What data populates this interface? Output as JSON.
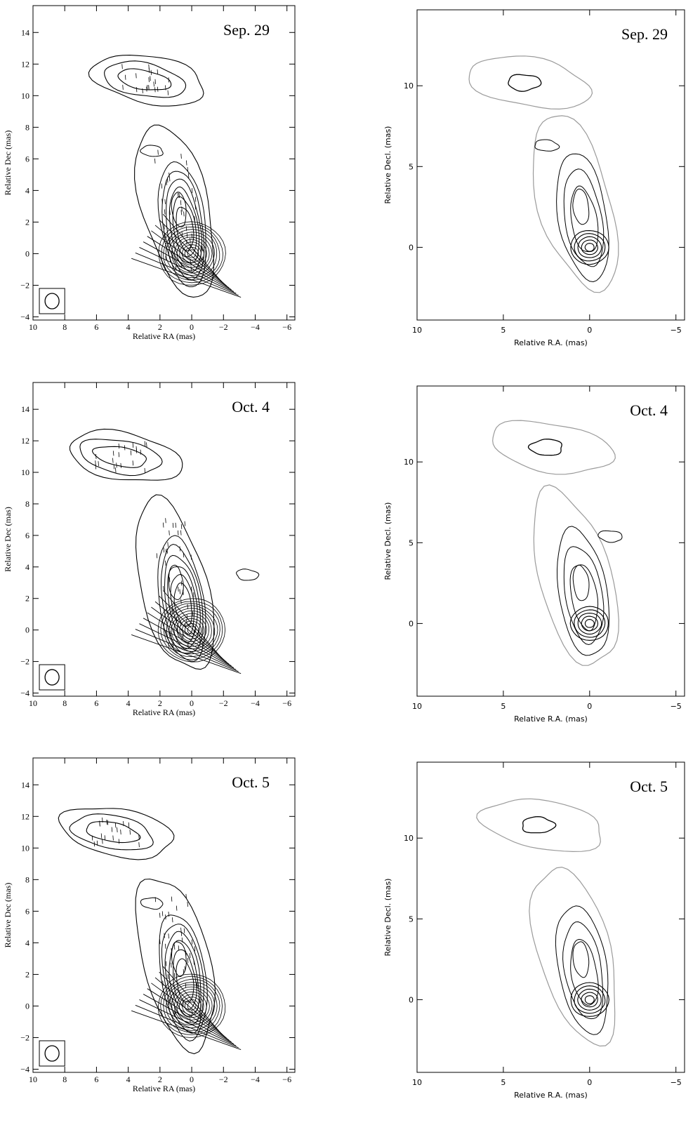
{
  "chart_data": [
    {
      "type": "contour",
      "title": "Sep. 29",
      "xlabel": "Relative RA (mas)",
      "ylabel": "Relative Dec (mas)",
      "xlim": [
        10,
        -6.5
      ],
      "ylim": [
        -4.2,
        15.7
      ],
      "xticks": [
        10,
        8,
        6,
        4,
        2,
        0,
        -2,
        -4,
        -6
      ],
      "yticks": [
        -4,
        -2,
        0,
        2,
        4,
        6,
        8,
        10,
        12,
        14
      ],
      "polarization_vectors": true,
      "beam_box": true,
      "components": [
        {
          "x": 0,
          "y": 0,
          "peak": true
        },
        {
          "x": 0.8,
          "y": 2.8
        },
        {
          "x": 3,
          "y": 11
        },
        {
          "x": 2.5,
          "y": 6.5
        }
      ]
    },
    {
      "type": "contour",
      "title": "Sep. 29",
      "xlabel": "Relative R.A. (mas)",
      "ylabel": "Relative Decl. (mas)",
      "xlim": [
        10,
        -5.5
      ],
      "ylim": [
        -4.5,
        14.7
      ],
      "xticks": [
        10,
        5,
        0,
        -5
      ],
      "yticks": [
        0,
        5,
        10
      ],
      "components": [
        {
          "x": 0,
          "y": 0,
          "peak": true
        },
        {
          "x": 0.5,
          "y": 2.5
        },
        {
          "x": 3.8,
          "y": 10.2
        },
        {
          "x": 2.5,
          "y": 6.3
        }
      ]
    },
    {
      "type": "contour",
      "title": "Oct. 4",
      "xlabel": "Relative RA (mas)",
      "ylabel": "Relative Dec (mas)",
      "xlim": [
        10,
        -6.5
      ],
      "ylim": [
        -4.2,
        15.7
      ],
      "xticks": [
        10,
        8,
        6,
        4,
        2,
        0,
        -2,
        -4,
        -6
      ],
      "yticks": [
        -4,
        -2,
        0,
        2,
        4,
        6,
        8,
        10,
        12,
        14
      ],
      "polarization_vectors": true,
      "beam_box": true,
      "components": [
        {
          "x": 0,
          "y": 0,
          "peak": true
        },
        {
          "x": 1,
          "y": 3
        },
        {
          "x": 4.5,
          "y": 11
        },
        {
          "x": -3.5,
          "y": 3.5
        }
      ]
    },
    {
      "type": "contour",
      "title": "Oct. 4",
      "xlabel": "Relative R.A. (mas)",
      "ylabel": "Relative Decl. (mas)",
      "xlim": [
        10,
        -5.5
      ],
      "ylim": [
        -4.5,
        14.7
      ],
      "xticks": [
        10,
        5,
        0,
        -5
      ],
      "yticks": [
        0,
        5,
        10
      ],
      "components": [
        {
          "x": 0,
          "y": 0,
          "peak": true
        },
        {
          "x": 0.5,
          "y": 2.5
        },
        {
          "x": 2.5,
          "y": 10.9
        },
        {
          "x": -1.2,
          "y": 5.4
        }
      ]
    },
    {
      "type": "contour",
      "title": "Oct. 5",
      "xlabel": "Relative RA (mas)",
      "ylabel": "Relative Dec (mas)",
      "xlim": [
        10,
        -6.5
      ],
      "ylim": [
        -4.2,
        15.7
      ],
      "xticks": [
        10,
        8,
        6,
        4,
        2,
        0,
        -2,
        -4,
        -6
      ],
      "yticks": [
        -4,
        -2,
        0,
        2,
        4,
        6,
        8,
        10,
        12,
        14
      ],
      "polarization_vectors": true,
      "beam_box": true,
      "components": [
        {
          "x": 0,
          "y": 0,
          "peak": true
        },
        {
          "x": 0.8,
          "y": 3
        },
        {
          "x": 5,
          "y": 11
        },
        {
          "x": 2.5,
          "y": 6.5
        }
      ]
    },
    {
      "type": "contour",
      "title": "Oct. 5",
      "xlabel": "Relative R.A. (mas)",
      "ylabel": "Relative Decl. (mas)",
      "xlim": [
        10,
        -5.5
      ],
      "ylim": [
        -4.5,
        14.7
      ],
      "xticks": [
        10,
        5,
        0,
        -5
      ],
      "yticks": [
        0,
        5,
        10
      ],
      "components": [
        {
          "x": 0,
          "y": 0,
          "peak": true
        },
        {
          "x": 0.5,
          "y": 2.5
        },
        {
          "x": 3,
          "y": 10.8
        }
      ]
    }
  ]
}
